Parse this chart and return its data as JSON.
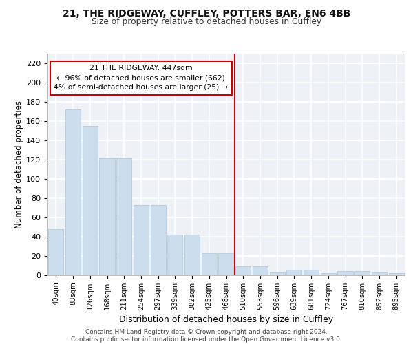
{
  "title1": "21, THE RIDGEWAY, CUFFLEY, POTTERS BAR, EN6 4BB",
  "title2": "Size of property relative to detached houses in Cuffley",
  "xlabel": "Distribution of detached houses by size in Cuffley",
  "ylabel": "Number of detached properties",
  "bar_color": "#ccdded",
  "bar_edge_color": "#aac4d8",
  "categories": [
    "40sqm",
    "83sqm",
    "126sqm",
    "168sqm",
    "211sqm",
    "254sqm",
    "297sqm",
    "339sqm",
    "382sqm",
    "425sqm",
    "468sqm",
    "510sqm",
    "553sqm",
    "596sqm",
    "639sqm",
    "681sqm",
    "724sqm",
    "767sqm",
    "810sqm",
    "852sqm",
    "895sqm"
  ],
  "values": [
    48,
    172,
    155,
    121,
    121,
    73,
    73,
    42,
    42,
    23,
    23,
    9,
    9,
    3,
    6,
    6,
    2,
    4,
    4,
    3,
    2
  ],
  "vline_index": 10.5,
  "vline_color": "#cc0000",
  "annotation_text": "21 THE RIDGEWAY: 447sqm\n← 96% of detached houses are smaller (662)\n4% of semi-detached houses are larger (25) →",
  "annotation_box_color": "#cc0000",
  "ylim": [
    0,
    230
  ],
  "yticks": [
    0,
    20,
    40,
    60,
    80,
    100,
    120,
    140,
    160,
    180,
    200,
    220
  ],
  "footer": "Contains HM Land Registry data © Crown copyright and database right 2024.\nContains public sector information licensed under the Open Government Licence v3.0.",
  "bg_color": "#eef2f7",
  "grid_color": "#ffffff",
  "fig_bg": "#ffffff"
}
